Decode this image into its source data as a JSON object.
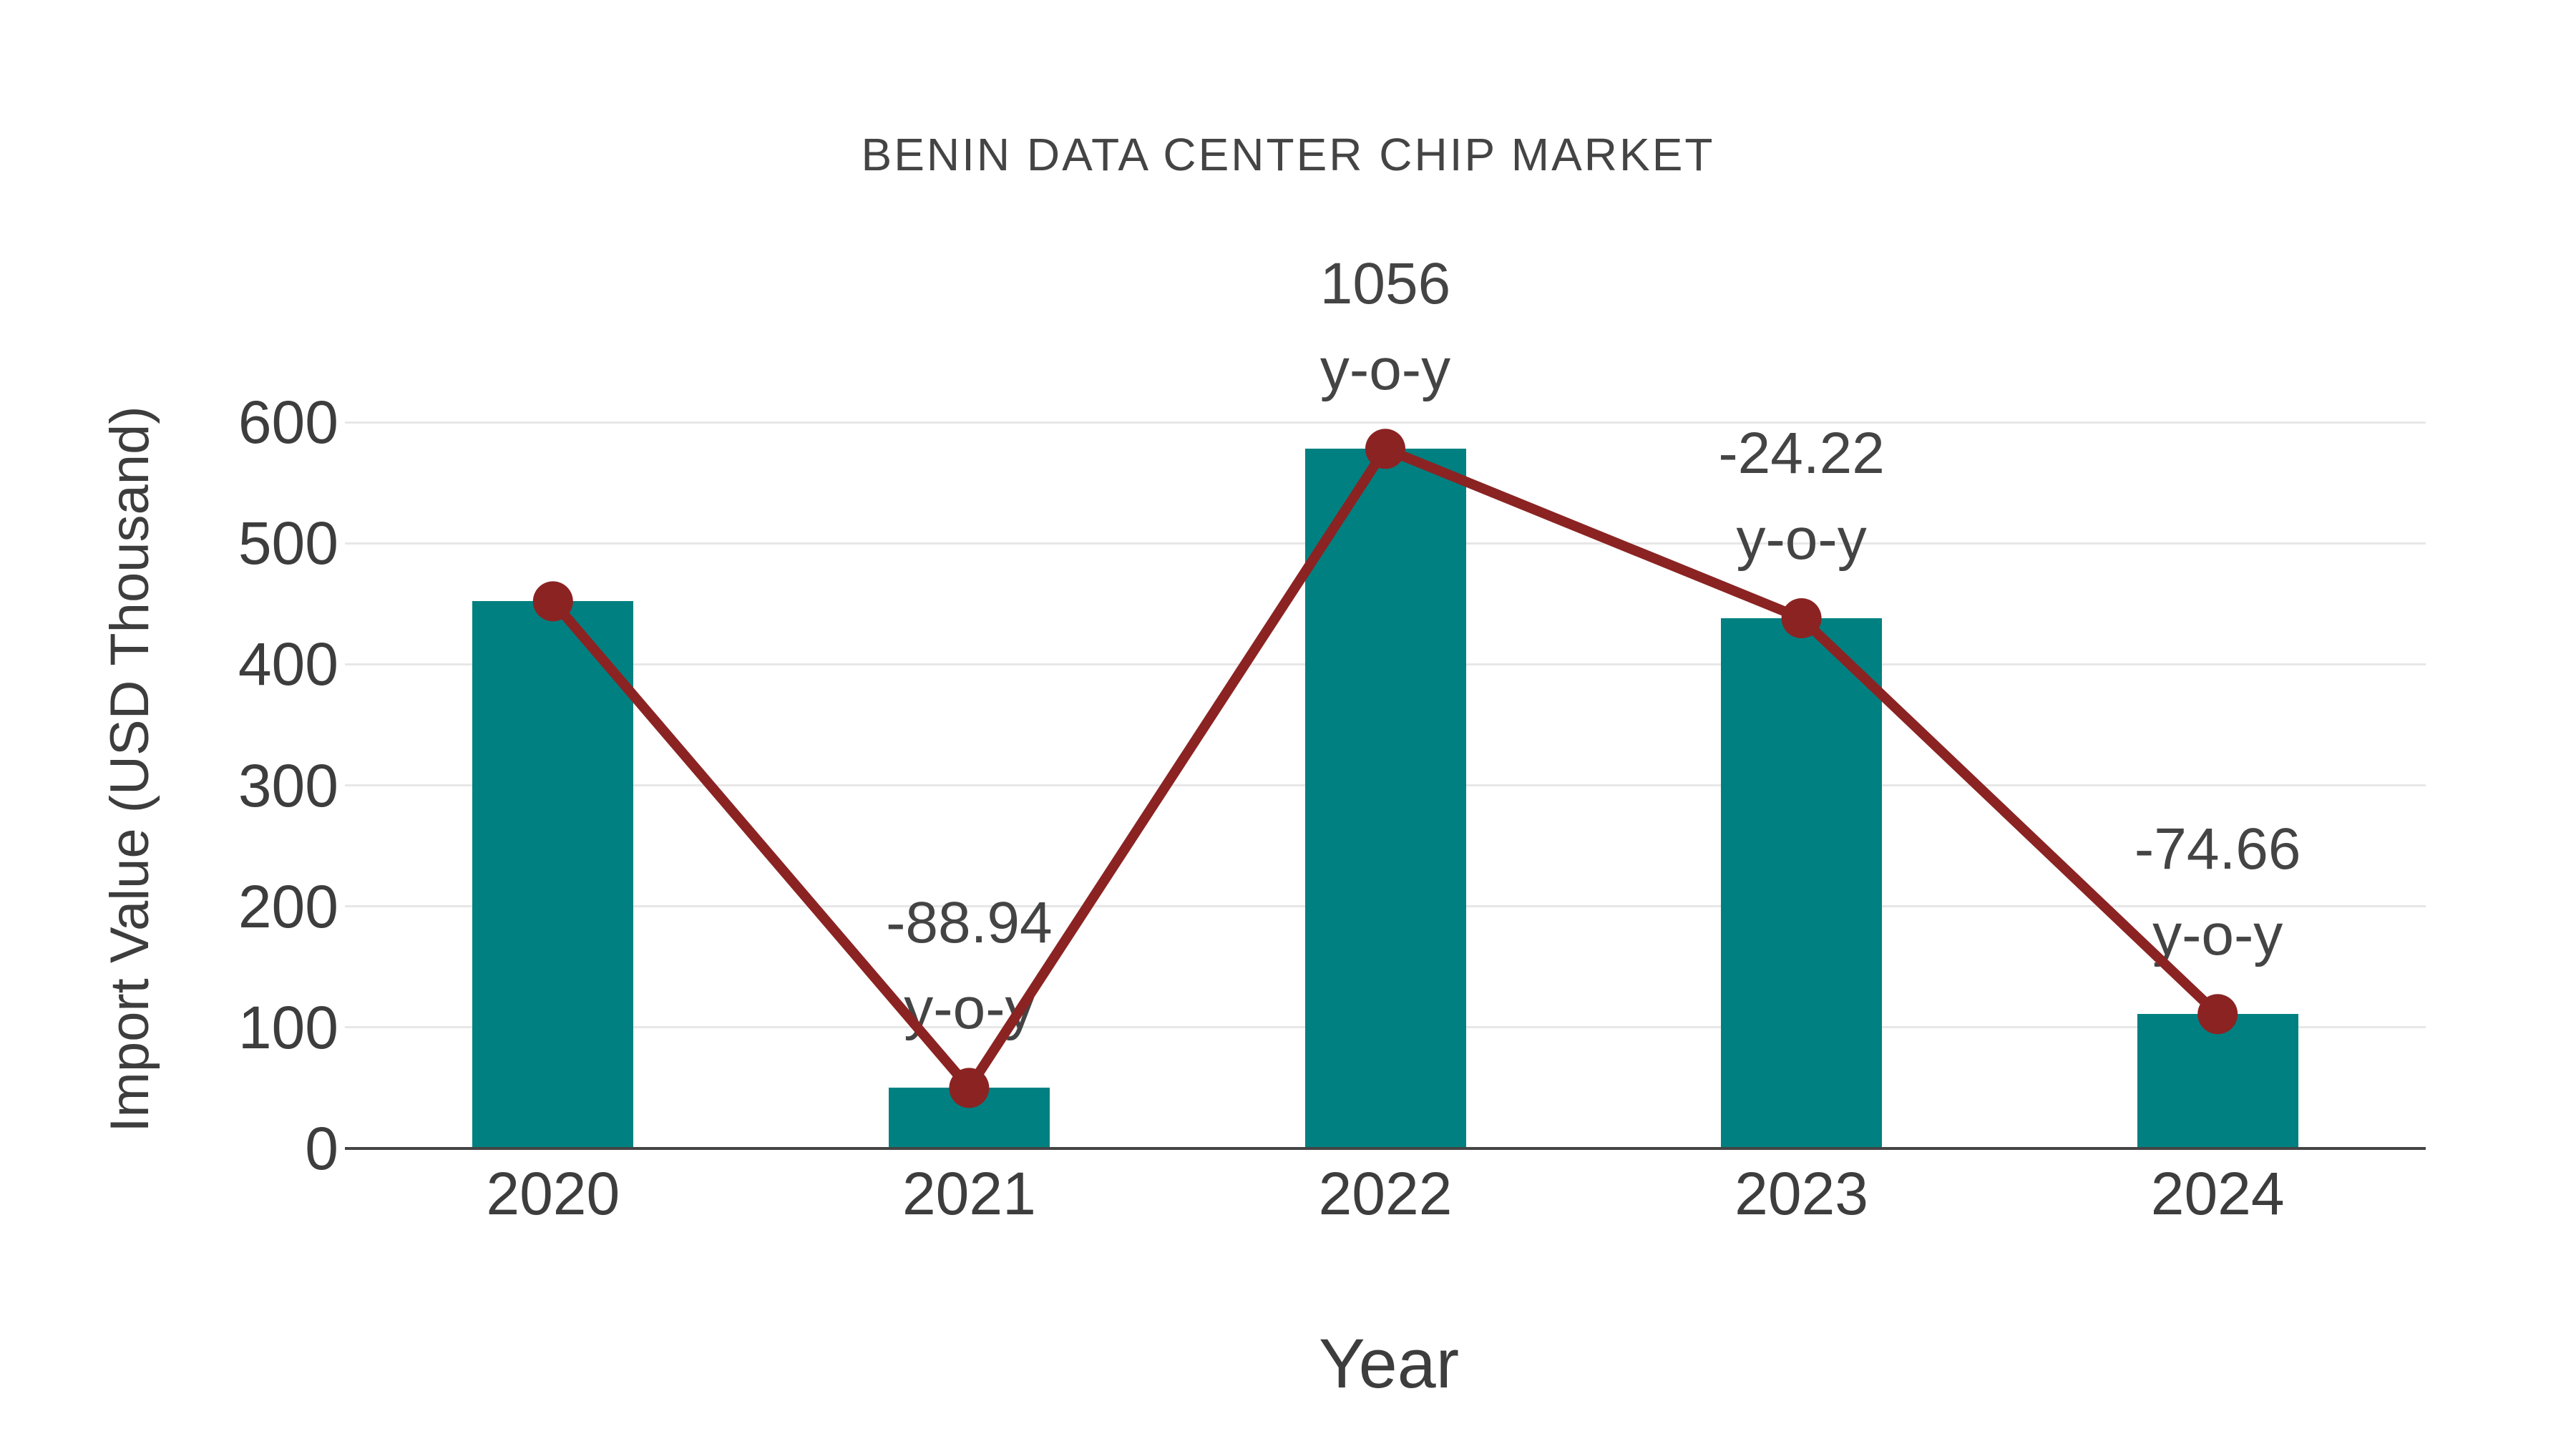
{
  "chart_data": {
    "type": "bar",
    "title": "BENIN DATA CENTER CHIP MARKET",
    "xlabel": "Year",
    "ylabel": "Import Value (USD Thousand)",
    "categories": [
      "2020",
      "2021",
      "2022",
      "2023",
      "2024"
    ],
    "series": [
      {
        "name": "import-value-bars",
        "type": "bar",
        "values": [
          452,
          50,
          578,
          438,
          111
        ]
      },
      {
        "name": "import-value-trend-line",
        "type": "line",
        "values": [
          452,
          50,
          578,
          438,
          111
        ]
      }
    ],
    "annotations": [
      {
        "category": "2021",
        "value_label": "-88.94",
        "suffix_label": "y-o-y"
      },
      {
        "category": "2022",
        "value_label": "1056",
        "suffix_label": "y-o-y"
      },
      {
        "category": "2023",
        "value_label": "-24.22",
        "suffix_label": "y-o-y"
      },
      {
        "category": "2024",
        "value_label": "-74.66",
        "suffix_label": "y-o-y"
      }
    ],
    "ylim": [
      0,
      600
    ],
    "yticks": [
      0,
      100,
      200,
      300,
      400,
      500,
      600
    ],
    "grid": "horizontal",
    "legend": "none",
    "colors": {
      "bar": "#008080",
      "line": "#8B2323",
      "marker": "#8B2323",
      "grid": "#e7e7e7",
      "axis": "#444444",
      "tick_text": "#3d3d3d",
      "title_text": "#444444",
      "annotation_text": "#444444",
      "background": "#ffffff"
    }
  }
}
